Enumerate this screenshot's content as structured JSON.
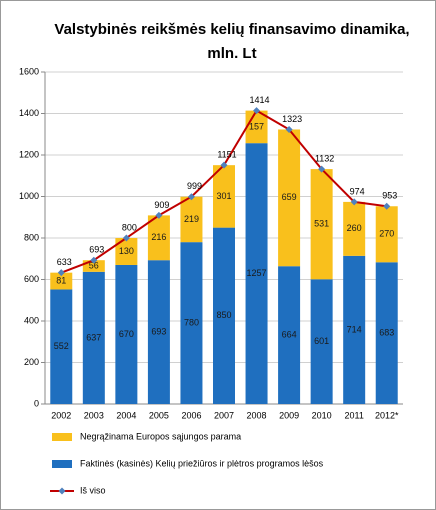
{
  "chart_data": {
    "type": "bar",
    "stacked": true,
    "title": [
      "Valstybinės reikšmės kelių finansavimo dinamika,",
      "mln. Lt"
    ],
    "categories": [
      "2002",
      "2003",
      "2004",
      "2005",
      "2006",
      "2007",
      "2008",
      "2009",
      "2010",
      "2011",
      "2012*"
    ],
    "series": [
      {
        "name": "Faktinės (kasinės) Kelių priežiūros ir plėtros programos lėšos",
        "color": "#1f6fbf",
        "values": [
          552,
          637,
          670,
          693,
          780,
          850,
          1257,
          664,
          601,
          714,
          683
        ]
      },
      {
        "name": "Negrąžinama Europos sąjungos parama",
        "color": "#f9c01c",
        "values": [
          81,
          56,
          130,
          216,
          219,
          301,
          157,
          659,
          531,
          260,
          270
        ]
      },
      {
        "name": "Iš viso",
        "color": "#c00000",
        "type": "line",
        "values": [
          633,
          693,
          800,
          909,
          999,
          1151,
          1414,
          1323,
          1132,
          974,
          953
        ]
      }
    ],
    "ylim": [
      0,
      1600
    ],
    "yticks": [
      0,
      200,
      400,
      600,
      800,
      1000,
      1200,
      1400,
      1600
    ],
    "grid": true
  }
}
